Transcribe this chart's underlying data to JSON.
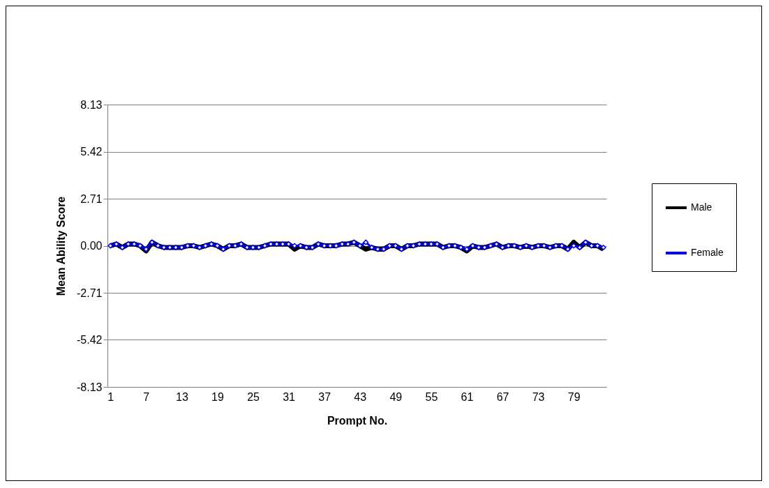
{
  "chart_data": {
    "type": "line",
    "xlabel": "Prompt No.",
    "ylabel": "Mean Ability Score",
    "categories": [
      "1",
      null,
      null,
      null,
      null,
      null,
      "7",
      null,
      null,
      null,
      null,
      null,
      "13",
      null,
      null,
      null,
      null,
      null,
      "19",
      null,
      null,
      null,
      null,
      null,
      "25",
      null,
      null,
      null,
      null,
      null,
      "31",
      null,
      null,
      null,
      null,
      null,
      "37",
      null,
      null,
      null,
      null,
      null,
      "43",
      null,
      null,
      null,
      null,
      null,
      "49",
      null,
      null,
      null,
      null,
      null,
      "55",
      null,
      null,
      null,
      null,
      null,
      "61",
      null,
      null,
      null,
      null,
      null,
      "67",
      null,
      null,
      null,
      null,
      null,
      "73",
      null,
      null,
      null,
      null,
      null,
      "79",
      null,
      null,
      null,
      null,
      null
    ],
    "series": [
      {
        "name": "Male",
        "color": "#000000",
        "marker": "none",
        "values": [
          0,
          0.1,
          -0.1,
          0.1,
          0.1,
          0,
          -0.3,
          0.2,
          0,
          -0.1,
          -0.1,
          -0.1,
          -0.1,
          0,
          0,
          -0.1,
          0,
          0.1,
          0,
          -0.2,
          0,
          0,
          0.1,
          -0.1,
          -0.1,
          -0.1,
          0,
          0.1,
          0.1,
          0.1,
          0.1,
          -0.2,
          0,
          -0.1,
          -0.1,
          0.1,
          0,
          0,
          0,
          0.1,
          0.1,
          0.2,
          0,
          -0.2,
          -0.1,
          -0.2,
          -0.2,
          0,
          0,
          -0.2,
          0,
          0,
          0.1,
          0.1,
          0.1,
          0.1,
          -0.1,
          0,
          0,
          -0.1,
          -0.3,
          0,
          -0.1,
          -0.1,
          0,
          0.1,
          -0.1,
          0,
          0,
          -0.1,
          0,
          -0.1,
          0,
          0,
          -0.1,
          0,
          0,
          -0.2,
          0.2,
          -0.1,
          0.2,
          0,
          0,
          -0.2
        ]
      },
      {
        "name": "Female",
        "color": "#0000ff",
        "marker": "diamond",
        "values": [
          0,
          0.1,
          -0.1,
          0.1,
          0.1,
          0,
          -0.2,
          0.2,
          0,
          -0.1,
          -0.1,
          -0.1,
          -0.1,
          0,
          0,
          -0.1,
          0,
          0.1,
          0,
          -0.2,
          0,
          0,
          0.1,
          -0.1,
          -0.1,
          -0.1,
          0,
          0.1,
          0.1,
          0.1,
          0.1,
          0,
          0,
          -0.1,
          -0.1,
          0.1,
          0,
          0,
          0,
          0.1,
          0.1,
          0.2,
          0,
          0.2,
          -0.1,
          -0.2,
          -0.2,
          0,
          0,
          -0.2,
          0,
          0,
          0.1,
          0.1,
          0.1,
          0.1,
          -0.1,
          0,
          0,
          -0.1,
          -0.2,
          0,
          -0.1,
          -0.1,
          0,
          0.1,
          -0.1,
          0,
          0,
          -0.1,
          0,
          -0.1,
          0,
          0,
          -0.1,
          0,
          0,
          -0.2,
          0,
          -0.1,
          0.2,
          0,
          0,
          -0.1
        ]
      }
    ],
    "ylim": [
      -8.13,
      8.13
    ],
    "yticks": [
      {
        "value": -8.13,
        "label": "-8.13"
      },
      {
        "value": -5.42,
        "label": "-5.42"
      },
      {
        "value": -2.71,
        "label": "-2.71"
      },
      {
        "value": 0,
        "label": "0.00"
      },
      {
        "value": 2.71,
        "label": "2.71"
      },
      {
        "value": 5.42,
        "label": "5.42"
      },
      {
        "value": 8.13,
        "label": "8.13"
      }
    ],
    "grid": "y",
    "legend": "right",
    "line_style": "solid"
  }
}
